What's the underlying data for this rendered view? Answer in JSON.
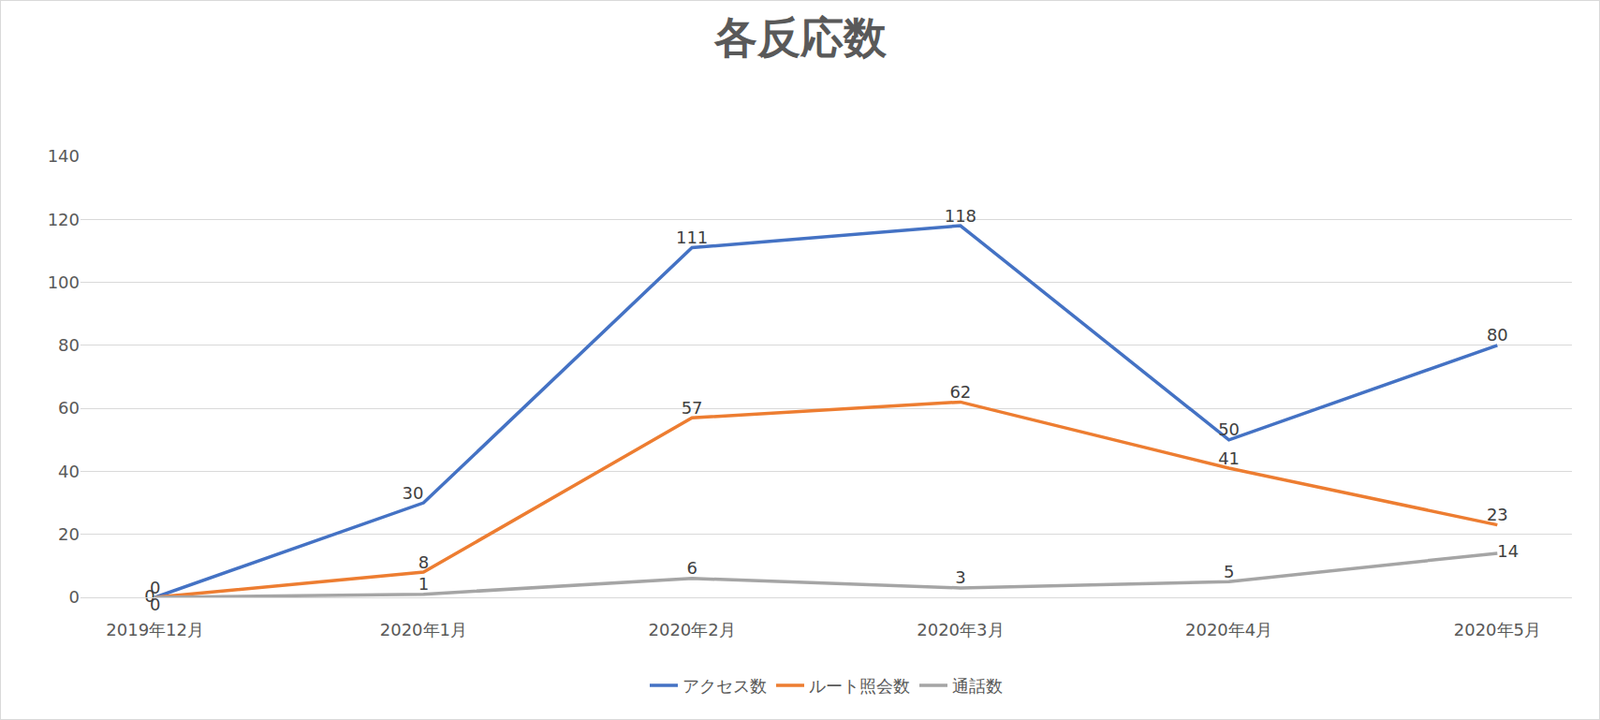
{
  "chart_data": {
    "type": "line",
    "title": "各反応数",
    "categories": [
      "2019年12月",
      "2020年1月",
      "2020年2月",
      "2020年3月",
      "2020年4月",
      "2020年5月"
    ],
    "series": [
      {
        "name": "アクセス数",
        "color": "#4472c4",
        "values": [
          0,
          30,
          111,
          118,
          50,
          80
        ]
      },
      {
        "name": "ルート照会数",
        "color": "#ed7d31",
        "values": [
          0,
          8,
          57,
          62,
          41,
          23
        ]
      },
      {
        "name": "通話数",
        "color": "#a5a5a5",
        "values": [
          0,
          1,
          6,
          3,
          5,
          14
        ]
      }
    ],
    "ylim": [
      0,
      140
    ],
    "yticks": [
      0,
      20,
      40,
      60,
      80,
      100,
      120,
      140
    ],
    "grid": true,
    "legend": "bottom",
    "data_labels": true
  }
}
